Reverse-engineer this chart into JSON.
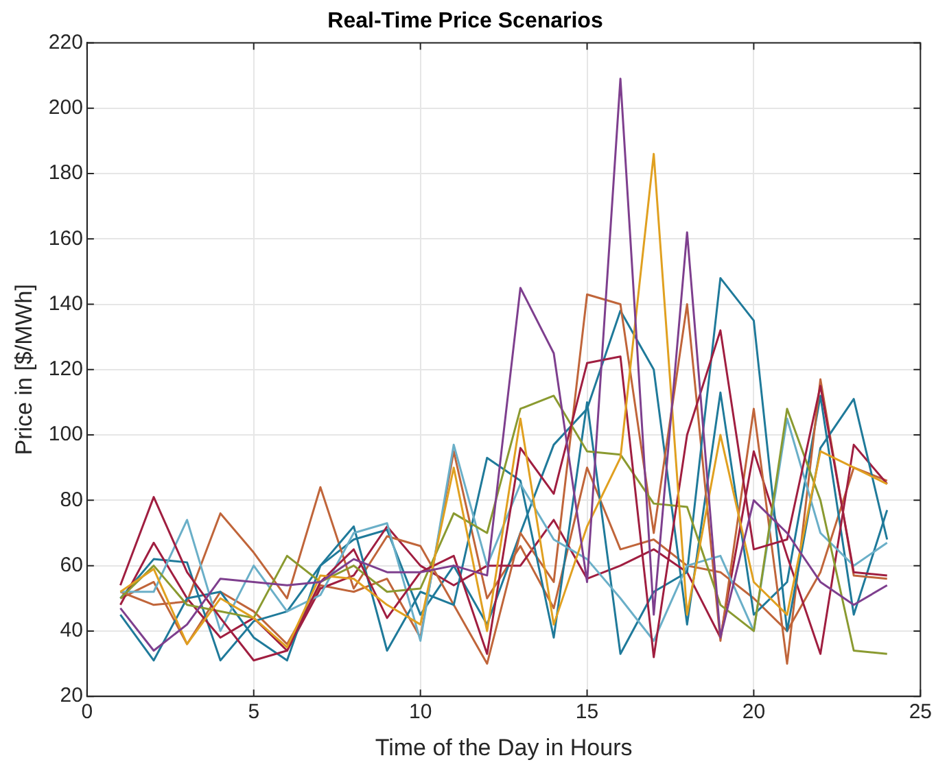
{
  "chart_data": {
    "type": "line",
    "title": "Real-Time Price Scenarios",
    "xlabel": "Time of the Day in Hours",
    "ylabel": "Price in [$/MWh]",
    "x": [
      1,
      2,
      3,
      4,
      5,
      6,
      7,
      8,
      9,
      10,
      11,
      12,
      13,
      14,
      15,
      16,
      17,
      18,
      19,
      20,
      21,
      22,
      23,
      24
    ],
    "series": [
      {
        "color": "#7e3f8e",
        "values": [
          47,
          34,
          42,
          56,
          55,
          54,
          55,
          62,
          58,
          58,
          60,
          57,
          145,
          125,
          55,
          209,
          45,
          162,
          38,
          80,
          70,
          55,
          48,
          54
        ]
      },
      {
        "color": "#e0a020",
        "values": [
          52,
          59,
          36,
          50,
          44,
          35,
          57,
          56,
          48,
          42,
          90,
          40,
          105,
          42,
          72,
          93,
          186,
          45,
          100,
          55,
          45,
          95,
          90,
          85
        ]
      },
      {
        "color": "#a01e40",
        "values": [
          54,
          81,
          58,
          44,
          31,
          34,
          55,
          65,
          44,
          58,
          63,
          33,
          96,
          82,
          122,
          124,
          32,
          100,
          132,
          65,
          68,
          115,
          58,
          57
        ]
      },
      {
        "color": "#8a9a30",
        "values": [
          50,
          60,
          48,
          46,
          44,
          63,
          55,
          60,
          52,
          53,
          76,
          70,
          108,
          112,
          95,
          94,
          79,
          78,
          48,
          40,
          108,
          80,
          34,
          33
        ]
      },
      {
        "color": "#6aafc8",
        "values": [
          52,
          52,
          74,
          40,
          60,
          46,
          51,
          70,
          73,
          37,
          97,
          60,
          85,
          68,
          62,
          50,
          37,
          60,
          63,
          40,
          105,
          70,
          60,
          67
        ]
      },
      {
        "color": "#1f7a9a",
        "values": [
          45,
          31,
          50,
          52,
          38,
          31,
          60,
          72,
          34,
          52,
          48,
          93,
          86,
          38,
          110,
          33,
          52,
          58,
          148,
          135,
          40,
          96,
          111,
          68
        ]
      },
      {
        "color": "#c0653a",
        "values": [
          52,
          48,
          49,
          76,
          64,
          50,
          84,
          53,
          69,
          66,
          48,
          30,
          70,
          55,
          143,
          140,
          70,
          140,
          37,
          108,
          30,
          117,
          57,
          56
        ]
      },
      {
        "color": "#a01e40",
        "values": [
          48,
          67,
          50,
          38,
          44,
          34,
          53,
          57,
          72,
          60,
          54,
          60,
          60,
          74,
          56,
          60,
          65,
          58,
          38,
          95,
          63,
          33,
          97,
          85
        ]
      },
      {
        "color": "#1f7a9a",
        "values": [
          50,
          62,
          61,
          31,
          43,
          46,
          60,
          68,
          71,
          45,
          60,
          42,
          70,
          97,
          108,
          138,
          120,
          42,
          113,
          45,
          55,
          112,
          45,
          77
        ]
      },
      {
        "color": "#c0653a",
        "values": [
          50,
          55,
          36,
          52,
          46,
          36,
          54,
          52,
          56,
          38,
          95,
          50,
          66,
          47,
          90,
          65,
          68,
          60,
          58,
          50,
          40,
          58,
          90,
          86
        ]
      }
    ],
    "xlim": [
      0,
      25
    ],
    "xticks": [
      0,
      5,
      10,
      15,
      20,
      25
    ],
    "ylim": [
      20,
      220
    ],
    "yticks": [
      20,
      40,
      60,
      80,
      100,
      120,
      140,
      160,
      180,
      200,
      220
    ],
    "grid": true,
    "legend": false,
    "marker": "none",
    "line_style": "solid"
  }
}
